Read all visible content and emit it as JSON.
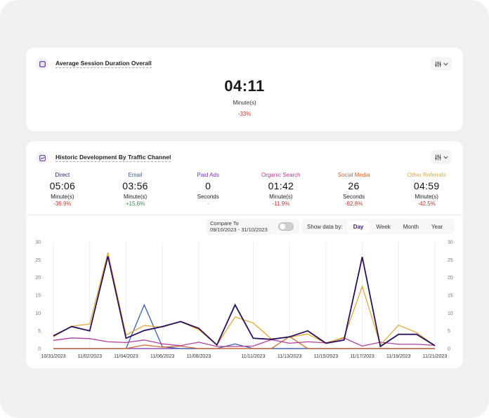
{
  "summary_card": {
    "title": "Average Session Duration Overall",
    "value": "04:11",
    "unit": "Minute(s)",
    "change": "-33%",
    "change_color": "#c0392b"
  },
  "history_card": {
    "title": "Historic Development By Traffic Channel",
    "channels": [
      {
        "name": "Direct",
        "value": "05:06",
        "unit": "Minute(s)",
        "change": "-36.9%",
        "color": "#3b1d7a",
        "change_color": "#c0392b"
      },
      {
        "name": "Email",
        "value": "03:56",
        "unit": "Minute(s)",
        "change": "+15.6%",
        "color": "#3a5fab",
        "change_color": "#3a8a4f"
      },
      {
        "name": "Paid Ads",
        "value": "0",
        "unit": "Seconds",
        "change": "-",
        "color": "#7a2fb8",
        "change_color": "#999999"
      },
      {
        "name": "Organic Search",
        "value": "01:42",
        "unit": "Minute(s)",
        "change": "-11.9%",
        "color": "#b03f9a",
        "change_color": "#c0392b"
      },
      {
        "name": "Social Media",
        "value": "26",
        "unit": "Seconds",
        "change": "-82.8%",
        "color": "#d0692a",
        "change_color": "#c0392b"
      },
      {
        "name": "Other Referrals",
        "value": "04:59",
        "unit": "Minute(s)",
        "change": "-42.5%",
        "color": "#e2a93b",
        "change_color": "#c0392b"
      }
    ],
    "compare": {
      "label": "Compare To",
      "range": "09/10/2023 - 31/10/2023",
      "enabled": false
    },
    "show_data_by": {
      "label": "Show data by:",
      "options": [
        "Day",
        "Week",
        "Month",
        "Year"
      ],
      "selected": "Day"
    }
  },
  "chart_data": {
    "type": "line",
    "title": "Historic Development By Traffic Channel",
    "xlabel": "",
    "ylabel": "",
    "ylim": [
      0,
      30
    ],
    "yticks": [
      0,
      5,
      10,
      15,
      20,
      25,
      30
    ],
    "grid": "vertical",
    "x": [
      "10/31/2023",
      "11/01/2023",
      "11/02/2023",
      "11/03/2023",
      "11/04/2023",
      "11/05/2023",
      "11/06/2023",
      "11/07/2023",
      "11/08/2023",
      "11/09/2023",
      "11/10/2023",
      "11/11/2023",
      "11/12/2023",
      "11/13/2023",
      "11/14/2023",
      "11/15/2023",
      "11/16/2023",
      "11/17/2023",
      "11/18/2023",
      "11/19/2023",
      "11/20/2023",
      "11/21/2023"
    ],
    "xtick_labels": [
      "10/31/2023",
      "11/02/2023",
      "11/04/2023",
      "11/06/2023",
      "11/08/2023",
      "11/11/2023",
      "11/13/2023",
      "11/15/2023",
      "11/17/2023",
      "11/19/2023",
      "11/21/2023"
    ],
    "series": [
      {
        "name": "Other Referrals",
        "color": "#e2a93b",
        "values": [
          3.3,
          6.3,
          6.9,
          27,
          3.8,
          6.5,
          6.0,
          7.6,
          5.3,
          1.0,
          8.9,
          7.2,
          2.7,
          3.2,
          4.1,
          1.5,
          3.2,
          17.5,
          1.0,
          6.6,
          4.5,
          0.8
        ]
      },
      {
        "name": "Direct",
        "color": "#2a0f5c",
        "values": [
          3.6,
          6.2,
          5.0,
          26,
          2.9,
          5.1,
          6.2,
          7.6,
          5.7,
          1.0,
          12.3,
          2.9,
          2.6,
          3.3,
          5.0,
          1.5,
          2.4,
          25.8,
          0.6,
          4.0,
          4.0,
          0.8
        ]
      },
      {
        "name": "Email",
        "color": "#3a5fab",
        "values": [
          0,
          0,
          0,
          0,
          0,
          12.3,
          0.5,
          0,
          0,
          0,
          1.3,
          0,
          0,
          0,
          0,
          0,
          0,
          0,
          0,
          0,
          0,
          0
        ]
      },
      {
        "name": "Organic Search",
        "color": "#b03f9a",
        "values": [
          2.3,
          3.0,
          2.8,
          1.9,
          1.7,
          2.4,
          1.3,
          0.8,
          1.8,
          0.6,
          0.6,
          0.7,
          2.5,
          1.5,
          1.9,
          1.6,
          3.0,
          0.7,
          1.8,
          1.2,
          1.2,
          0.9
        ]
      },
      {
        "name": "Social Media",
        "color": "#d0692a",
        "values": [
          0,
          0,
          0,
          0,
          0,
          1.0,
          0.4,
          0.7,
          0,
          0,
          0,
          0,
          0,
          3.4,
          0,
          0,
          0,
          0,
          0,
          0,
          0,
          0
        ]
      },
      {
        "name": "Paid Ads",
        "color": "#7a2fb8",
        "values": [
          0,
          0,
          0,
          0,
          0,
          0,
          0,
          0,
          0,
          0,
          0,
          0,
          0,
          0,
          0,
          0,
          0,
          0,
          0,
          0,
          0,
          0
        ]
      }
    ]
  }
}
